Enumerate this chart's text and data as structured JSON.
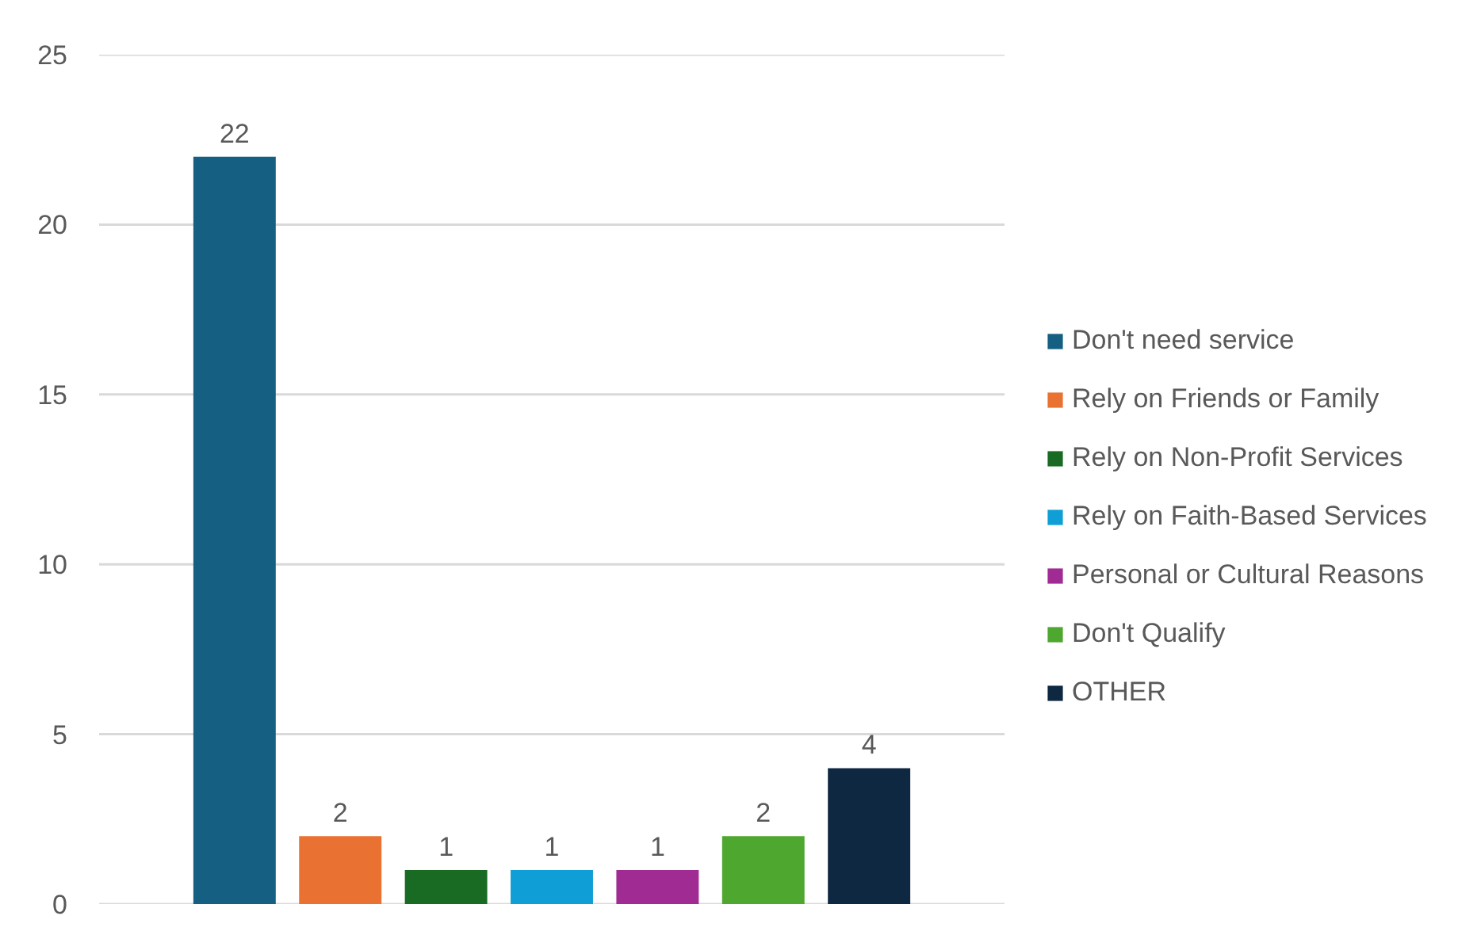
{
  "chart_data": {
    "type": "bar",
    "categories": [
      null
    ],
    "series": [
      {
        "name": "Don't need service",
        "color": "#156082",
        "values": [
          22
        ]
      },
      {
        "name": "Rely on Friends or Family",
        "color": "#e97132",
        "values": [
          2
        ]
      },
      {
        "name": "Rely on Non-Profit Services",
        "color": "#196b24",
        "values": [
          1
        ]
      },
      {
        "name": "Rely on Faith-Based Services",
        "color": "#0f9ed5",
        "values": [
          1
        ]
      },
      {
        "name": "Personal or Cultural Reasons",
        "color": "#a02b93",
        "values": [
          1
        ]
      },
      {
        "name": "Don't Qualify",
        "color": "#4ea72e",
        "values": [
          2
        ]
      },
      {
        "name": "OTHER",
        "color": "#0e2841",
        "values": [
          4
        ]
      }
    ],
    "ylim": [
      0,
      25
    ],
    "yticks": [
      0,
      5,
      10,
      15,
      20,
      25
    ],
    "grid": "y",
    "legend": "right",
    "data_labels": true
  }
}
